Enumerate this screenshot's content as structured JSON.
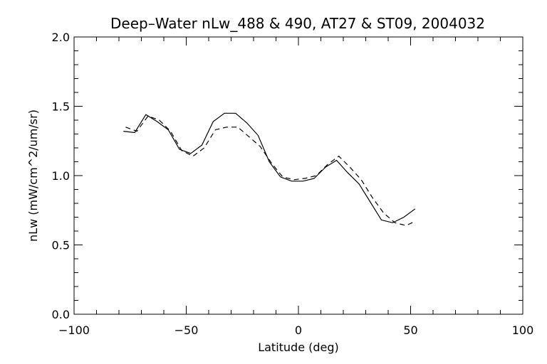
{
  "chart_data": {
    "type": "line",
    "title": "Deep–Water nLw_488 & 490, AT27 & ST09, 2004032",
    "xlabel": "Latitude (deg)",
    "ylabel": "nLw (mW/cm^2/um/sr)",
    "xlim": [
      -100,
      100
    ],
    "ylim": [
      0.0,
      2.0
    ],
    "xticks": [
      -100,
      -50,
      0,
      50,
      100
    ],
    "xtick_labels": [
      "−100",
      "−50",
      "0",
      "50",
      "100"
    ],
    "yticks": [
      0.0,
      0.5,
      1.0,
      1.5,
      2.0
    ],
    "ytick_labels": [
      "0.0",
      "0.5",
      "1.0",
      "1.5",
      "2.0"
    ],
    "grid": false,
    "series": [
      {
        "style": "solid",
        "color": "#000000",
        "x": [
          -78,
          -73,
          -68,
          -63,
          -58,
          -53,
          -48,
          -43,
          -38,
          -33,
          -28,
          -23,
          -18,
          -13,
          -8,
          -3,
          2,
          7,
          12,
          17,
          22,
          27,
          32,
          37,
          42,
          47,
          52
        ],
        "y": [
          1.32,
          1.31,
          1.44,
          1.39,
          1.33,
          1.19,
          1.16,
          1.22,
          1.39,
          1.45,
          1.45,
          1.38,
          1.29,
          1.1,
          0.99,
          0.96,
          0.96,
          0.98,
          1.06,
          1.11,
          1.02,
          0.94,
          0.81,
          0.68,
          0.66,
          0.7,
          0.76
        ]
      },
      {
        "style": "dashed",
        "color": "#000000",
        "x": [
          -77,
          -72,
          -67,
          -62,
          -57,
          -52,
          -47,
          -42,
          -37,
          -32,
          -27,
          -22,
          -17,
          -12,
          -7,
          -2,
          3,
          8,
          13,
          18,
          23,
          28,
          33,
          38,
          43,
          48,
          52
        ],
        "y": [
          1.35,
          1.32,
          1.43,
          1.4,
          1.32,
          1.18,
          1.14,
          1.2,
          1.33,
          1.35,
          1.35,
          1.28,
          1.21,
          1.09,
          0.99,
          0.97,
          0.98,
          1.0,
          1.08,
          1.14,
          1.06,
          0.97,
          0.84,
          0.73,
          0.66,
          0.64,
          0.67
        ]
      }
    ]
  }
}
